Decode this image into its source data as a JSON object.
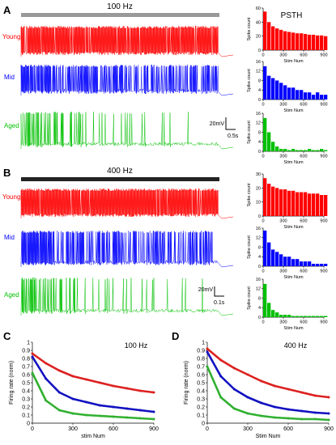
{
  "panels": {
    "A": {
      "label": "A",
      "stim_label": "100 Hz",
      "traces": [
        {
          "name": "Young",
          "color": "#ff0000"
        },
        {
          "name": "Mid",
          "color": "#0000ff"
        },
        {
          "name": "Aged",
          "color": "#00c000"
        }
      ],
      "scalebar": {
        "v": "20mV",
        "t": "0.5s"
      },
      "psth_title": "PSTH"
    },
    "B": {
      "label": "B",
      "stim_label": "400 Hz",
      "traces": [
        {
          "name": "Young",
          "color": "#ff0000"
        },
        {
          "name": "Mid",
          "color": "#0000ff"
        },
        {
          "name": "Aged",
          "color": "#00c000"
        }
      ],
      "scalebar": {
        "v": "20mV",
        "t": "0.1s"
      }
    },
    "C": {
      "label": "C",
      "stim_label": "100 Hz"
    },
    "D": {
      "label": "D",
      "stim_label": "400 Hz"
    }
  },
  "chart_data": [
    {
      "id": "psth-A-young",
      "type": "bar",
      "color": "#ff0000",
      "ylabel": "Spike count",
      "xlabel": "Stim Num",
      "xlim": [
        0,
        900
      ],
      "ylim": [
        0,
        60
      ],
      "xticks": [
        0,
        300,
        600,
        900
      ],
      "yticks": [
        0,
        20,
        40,
        60
      ],
      "x": [
        0,
        60,
        120,
        180,
        240,
        300,
        360,
        420,
        480,
        540,
        600,
        660,
        720,
        780,
        840,
        900
      ],
      "values": [
        55,
        40,
        34,
        31,
        29,
        27,
        26,
        25,
        24,
        24,
        23,
        22,
        22,
        21,
        21,
        20
      ]
    },
    {
      "id": "psth-A-mid",
      "type": "bar",
      "color": "#0000ff",
      "ylabel": "Spike count",
      "xlabel": "Stim Num",
      "xlim": [
        0,
        900
      ],
      "ylim": [
        0,
        16
      ],
      "xticks": [
        0,
        300,
        600,
        900
      ],
      "yticks": [
        0,
        4,
        8,
        12,
        16
      ],
      "x": [
        0,
        60,
        120,
        180,
        240,
        300,
        360,
        420,
        480,
        540,
        600,
        660,
        720,
        780,
        840,
        900
      ],
      "values": [
        14,
        10,
        9,
        8,
        7,
        6,
        5,
        5,
        4,
        4,
        3,
        3,
        2,
        3,
        2,
        2
      ]
    },
    {
      "id": "psth-A-aged",
      "type": "bar",
      "color": "#00c000",
      "ylabel": "Spike count",
      "xlabel": "Stim Num",
      "xlim": [
        0,
        900
      ],
      "ylim": [
        0,
        16
      ],
      "xticks": [
        0,
        300,
        600,
        900
      ],
      "yticks": [
        0,
        4,
        8,
        12,
        16
      ],
      "x": [
        0,
        60,
        120,
        180,
        240,
        300,
        360,
        420,
        480,
        540,
        600,
        660,
        720,
        780,
        840,
        900
      ],
      "values": [
        14,
        8,
        4,
        2,
        1,
        1,
        0.5,
        1,
        0.5,
        0.5,
        0.5,
        1,
        0.5,
        0.5,
        1,
        0.5
      ]
    },
    {
      "id": "psth-B-young",
      "type": "bar",
      "color": "#ff0000",
      "ylabel": "Spike count",
      "xlabel": "Stim Num",
      "xlim": [
        0,
        900
      ],
      "ylim": [
        0,
        30
      ],
      "xticks": [
        0,
        300,
        600,
        900
      ],
      "yticks": [
        0,
        10,
        20,
        30
      ],
      "x": [
        0,
        60,
        120,
        180,
        240,
        300,
        360,
        420,
        480,
        540,
        600,
        660,
        720,
        780,
        840,
        900
      ],
      "values": [
        27,
        23,
        21,
        20,
        19,
        19,
        18,
        18,
        17,
        17,
        17,
        16,
        16,
        16,
        15,
        15
      ]
    },
    {
      "id": "psth-B-mid",
      "type": "bar",
      "color": "#0000ff",
      "ylabel": "Spike count",
      "xlabel": "Stim Num",
      "xlim": [
        0,
        900
      ],
      "ylim": [
        0,
        16
      ],
      "xticks": [
        0,
        300,
        600,
        900
      ],
      "yticks": [
        0,
        4,
        8,
        12,
        16
      ],
      "x": [
        0,
        60,
        120,
        180,
        240,
        300,
        360,
        420,
        480,
        540,
        600,
        660,
        720,
        780,
        840,
        900
      ],
      "values": [
        15,
        10,
        7,
        6,
        5,
        4,
        4,
        3,
        3,
        2,
        2,
        2,
        1,
        1,
        1,
        1
      ]
    },
    {
      "id": "psth-B-aged",
      "type": "bar",
      "color": "#00c000",
      "ylabel": "Spike count",
      "xlabel": "Stim Num",
      "xlim": [
        0,
        900
      ],
      "ylim": [
        0,
        16
      ],
      "xticks": [
        0,
        300,
        600,
        900
      ],
      "yticks": [
        0,
        4,
        8,
        12,
        16
      ],
      "x": [
        0,
        60,
        120,
        180,
        240,
        300,
        360,
        420,
        480,
        540,
        600,
        660,
        720,
        780,
        840,
        900
      ],
      "values": [
        14,
        6,
        3,
        2,
        1,
        1,
        1,
        0.5,
        0.5,
        0.5,
        0.5,
        0.5,
        0.5,
        0.5,
        0.5,
        0.5
      ]
    },
    {
      "id": "rate-C",
      "type": "line",
      "ylabel": "Firing rate (norm)",
      "xlabel": "stim Num",
      "xlim": [
        0,
        900
      ],
      "ylim": [
        0,
        1.0
      ],
      "xticks": [
        0,
        300,
        600,
        900
      ],
      "yticks": [
        0,
        0.1,
        0.2,
        0.3,
        0.4,
        0.5,
        0.6,
        0.7,
        0.8,
        0.9,
        1.0
      ],
      "x": [
        0,
        100,
        200,
        300,
        400,
        500,
        600,
        700,
        800,
        900
      ],
      "series": [
        {
          "color": "#dd2020",
          "values": [
            0.86,
            0.74,
            0.65,
            0.58,
            0.54,
            0.5,
            0.46,
            0.43,
            0.4,
            0.38
          ]
        },
        {
          "color": "#1010c0",
          "values": [
            0.82,
            0.55,
            0.38,
            0.3,
            0.26,
            0.22,
            0.2,
            0.18,
            0.16,
            0.14
          ]
        },
        {
          "color": "#30b030",
          "values": [
            0.62,
            0.28,
            0.16,
            0.12,
            0.1,
            0.09,
            0.08,
            0.07,
            0.06,
            0.05
          ]
        }
      ]
    },
    {
      "id": "rate-D",
      "type": "line",
      "ylabel": "Firing rate (norm)",
      "xlabel": "Stim Num",
      "xlim": [
        0,
        900
      ],
      "ylim": [
        0,
        1.0
      ],
      "xticks": [
        0,
        300,
        600,
        900
      ],
      "yticks": [
        0,
        0.1,
        0.2,
        0.3,
        0.4,
        0.5,
        0.6,
        0.7,
        0.8,
        0.9,
        1.0
      ],
      "x": [
        0,
        100,
        200,
        300,
        400,
        500,
        600,
        700,
        800,
        900
      ],
      "series": [
        {
          "color": "#dd2020",
          "values": [
            0.92,
            0.78,
            0.68,
            0.6,
            0.52,
            0.46,
            0.42,
            0.38,
            0.34,
            0.32
          ]
        },
        {
          "color": "#1010c0",
          "values": [
            0.88,
            0.58,
            0.42,
            0.32,
            0.25,
            0.2,
            0.17,
            0.15,
            0.13,
            0.12
          ]
        },
        {
          "color": "#30b030",
          "values": [
            0.7,
            0.32,
            0.18,
            0.12,
            0.09,
            0.07,
            0.06,
            0.05,
            0.05,
            0.04
          ]
        }
      ]
    }
  ]
}
